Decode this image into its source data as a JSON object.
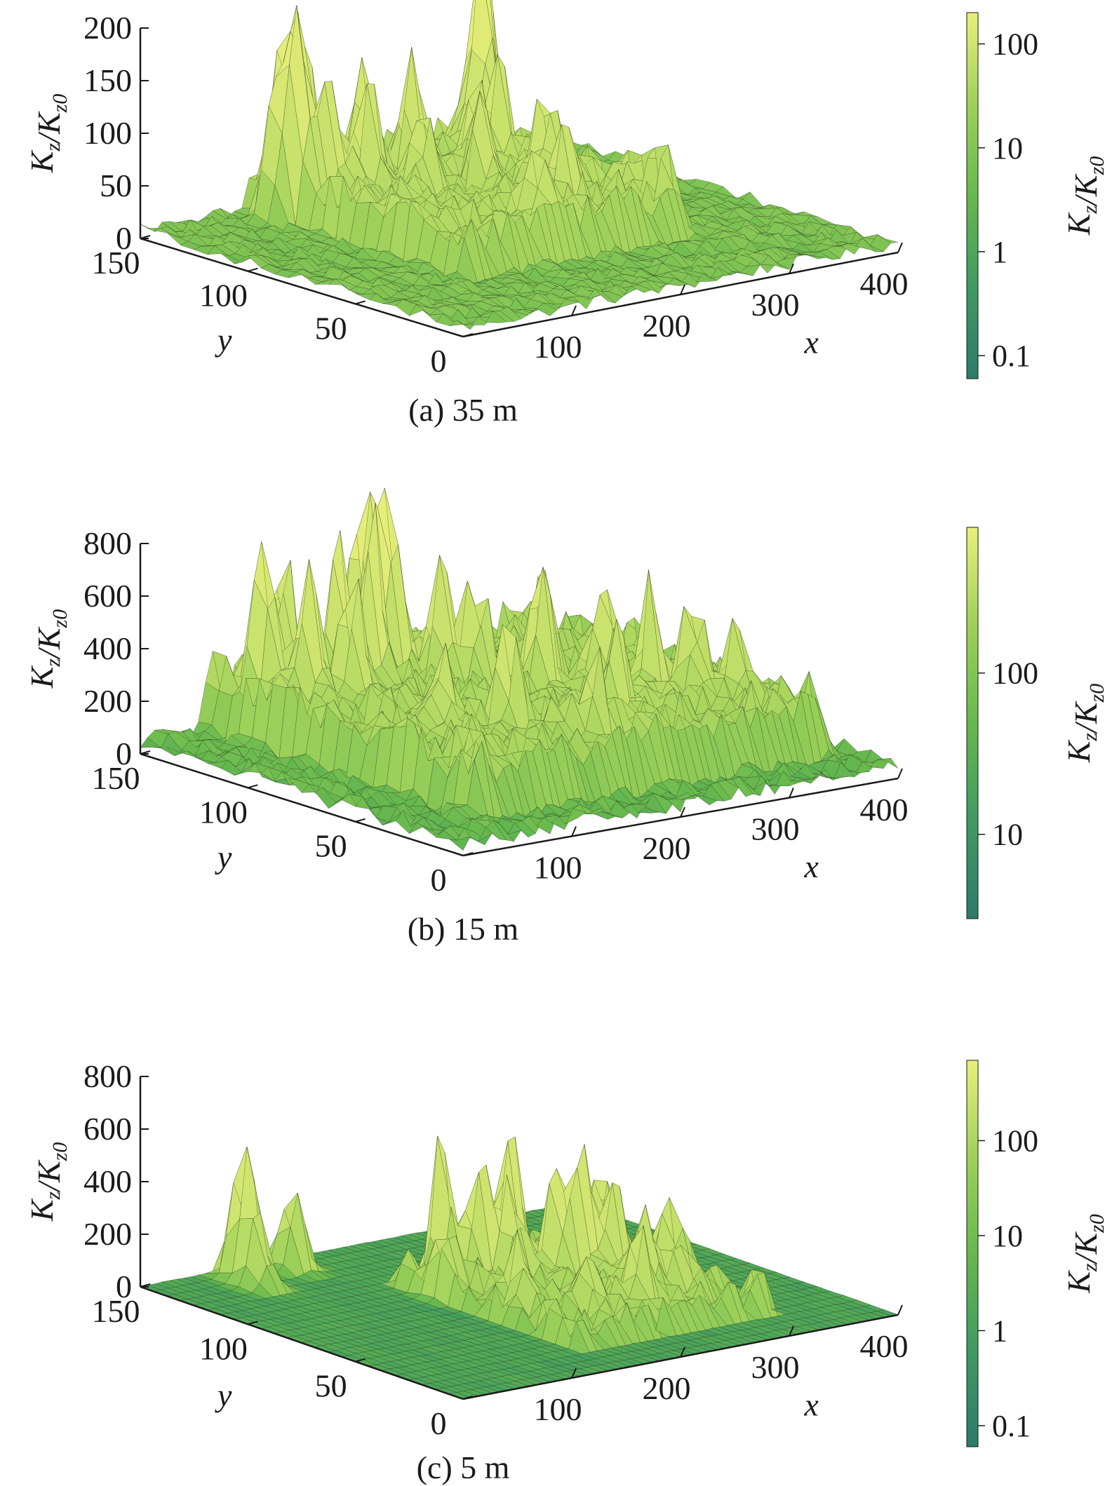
{
  "colors": {
    "colormap": [
      "#2e7a6c",
      "#3f9a62",
      "#66b84e",
      "#9ed15a",
      "#e9ef7a"
    ],
    "mesh_line": "#1b2a12",
    "axis": "#1a1a1a"
  },
  "chart_data": [
    {
      "type": "surface",
      "caption": "(a) 35 m",
      "zlabel": "K_z/K_z0",
      "xlabel": "x",
      "ylabel": "y",
      "colorbar_label": "K_z/K_z0",
      "xlim": [
        0,
        400
      ],
      "ylim": [
        0,
        150
      ],
      "zlim": [
        0,
        200
      ],
      "xticks": [
        "100",
        "200",
        "300",
        "400"
      ],
      "yticks": [
        "0",
        "50",
        "100",
        "150"
      ],
      "zticks": [
        "0",
        "50",
        "100",
        "150",
        "200"
      ],
      "colorbar_scale": "log",
      "colorbar_range": [
        0.06,
        200
      ],
      "colorbar_ticks": [
        "0.1",
        "1",
        "10",
        "100"
      ],
      "colorbar_tick_values": [
        0.1,
        1,
        10,
        100
      ],
      "peak_region": {
        "x": [
          100,
          300
        ],
        "y": [
          50,
          150
        ]
      },
      "background_level": 10,
      "peaks": [
        {
          "x": 95,
          "y": 135,
          "z": 140
        },
        {
          "x": 115,
          "y": 140,
          "z": 185
        },
        {
          "x": 108,
          "y": 130,
          "z": 150
        },
        {
          "x": 125,
          "y": 125,
          "z": 110
        },
        {
          "x": 130,
          "y": 140,
          "z": 130
        },
        {
          "x": 150,
          "y": 120,
          "z": 95
        },
        {
          "x": 165,
          "y": 130,
          "z": 115
        },
        {
          "x": 180,
          "y": 110,
          "z": 85
        },
        {
          "x": 200,
          "y": 125,
          "z": 100
        },
        {
          "x": 215,
          "y": 100,
          "z": 80
        },
        {
          "x": 240,
          "y": 115,
          "z": 90
        },
        {
          "x": 255,
          "y": 90,
          "z": 95
        },
        {
          "x": 270,
          "y": 120,
          "z": 110
        },
        {
          "x": 285,
          "y": 135,
          "z": 160
        },
        {
          "x": 295,
          "y": 140,
          "z": 175
        },
        {
          "x": 230,
          "y": 70,
          "z": 75
        },
        {
          "x": 185,
          "y": 60,
          "z": 70
        },
        {
          "x": 300,
          "y": 60,
          "z": 40
        }
      ]
    },
    {
      "type": "surface",
      "caption": "(b) 15 m",
      "zlabel": "K_z/K_z0",
      "xlabel": "x",
      "ylabel": "y",
      "colorbar_label": "K_z/K_z0",
      "xlim": [
        0,
        400
      ],
      "ylim": [
        0,
        150
      ],
      "zlim": [
        0,
        800
      ],
      "xticks": [
        "100",
        "200",
        "300",
        "400"
      ],
      "yticks": [
        "0",
        "50",
        "100",
        "150"
      ],
      "zticks": [
        "0",
        "200",
        "400",
        "600",
        "800"
      ],
      "colorbar_scale": "log",
      "colorbar_range": [
        3,
        800
      ],
      "colorbar_ticks": [
        "10",
        "100"
      ],
      "colorbar_tick_values": [
        10,
        100
      ],
      "peak_region": {
        "x": [
          60,
          380
        ],
        "y": [
          20,
          150
        ]
      },
      "background_level": 60,
      "peaks": [
        {
          "x": 85,
          "y": 135,
          "z": 600
        },
        {
          "x": 95,
          "y": 120,
          "z": 520
        },
        {
          "x": 110,
          "y": 140,
          "z": 560
        },
        {
          "x": 125,
          "y": 115,
          "z": 480
        },
        {
          "x": 145,
          "y": 130,
          "z": 640
        },
        {
          "x": 165,
          "y": 125,
          "z": 620
        },
        {
          "x": 185,
          "y": 140,
          "z": 800
        },
        {
          "x": 200,
          "y": 135,
          "z": 880
        },
        {
          "x": 215,
          "y": 120,
          "z": 520
        },
        {
          "x": 230,
          "y": 110,
          "z": 450
        },
        {
          "x": 250,
          "y": 90,
          "z": 560
        },
        {
          "x": 270,
          "y": 100,
          "z": 480
        },
        {
          "x": 290,
          "y": 80,
          "z": 470
        },
        {
          "x": 310,
          "y": 70,
          "z": 430
        },
        {
          "x": 330,
          "y": 60,
          "z": 380
        },
        {
          "x": 350,
          "y": 50,
          "z": 300
        },
        {
          "x": 160,
          "y": 60,
          "z": 420
        },
        {
          "x": 200,
          "y": 40,
          "z": 350
        },
        {
          "x": 240,
          "y": 50,
          "z": 380
        },
        {
          "x": 120,
          "y": 70,
          "z": 300
        }
      ]
    },
    {
      "type": "surface",
      "caption": "(c) 5 m",
      "zlabel": "K_z/K_z0",
      "xlabel": "x",
      "ylabel": "y",
      "colorbar_label": "K_z/K_z0",
      "xlim": [
        0,
        400
      ],
      "ylim": [
        0,
        150
      ],
      "zlim": [
        0,
        800
      ],
      "xticks": [
        "100",
        "200",
        "300",
        "400"
      ],
      "yticks": [
        "0",
        "50",
        "100",
        "150"
      ],
      "zticks": [
        "0",
        "200",
        "400",
        "600",
        "800"
      ],
      "colorbar_scale": "log",
      "colorbar_range": [
        0.06,
        700
      ],
      "colorbar_ticks": [
        "0.1",
        "1",
        "10",
        "100"
      ],
      "colorbar_tick_values": [
        0.1,
        1,
        10,
        100
      ],
      "peak_region": {
        "x": [
          150,
          330
        ],
        "y": [
          20,
          110
        ]
      },
      "background_level": 2,
      "peaks": [
        {
          "x": 75,
          "y": 140,
          "z": 640
        },
        {
          "x": 70,
          "y": 130,
          "z": 300
        },
        {
          "x": 120,
          "y": 140,
          "z": 380
        },
        {
          "x": 190,
          "y": 105,
          "z": 530
        },
        {
          "x": 205,
          "y": 95,
          "z": 420
        },
        {
          "x": 215,
          "y": 85,
          "z": 400
        },
        {
          "x": 230,
          "y": 95,
          "z": 560
        },
        {
          "x": 245,
          "y": 80,
          "z": 460
        },
        {
          "x": 260,
          "y": 75,
          "z": 500
        },
        {
          "x": 275,
          "y": 70,
          "z": 380
        },
        {
          "x": 295,
          "y": 85,
          "z": 430
        },
        {
          "x": 310,
          "y": 60,
          "z": 290
        },
        {
          "x": 175,
          "y": 60,
          "z": 260
        },
        {
          "x": 200,
          "y": 45,
          "z": 240
        },
        {
          "x": 240,
          "y": 40,
          "z": 280
        },
        {
          "x": 265,
          "y": 50,
          "z": 310
        },
        {
          "x": 285,
          "y": 45,
          "z": 220
        },
        {
          "x": 160,
          "y": 90,
          "z": 200
        }
      ]
    }
  ]
}
